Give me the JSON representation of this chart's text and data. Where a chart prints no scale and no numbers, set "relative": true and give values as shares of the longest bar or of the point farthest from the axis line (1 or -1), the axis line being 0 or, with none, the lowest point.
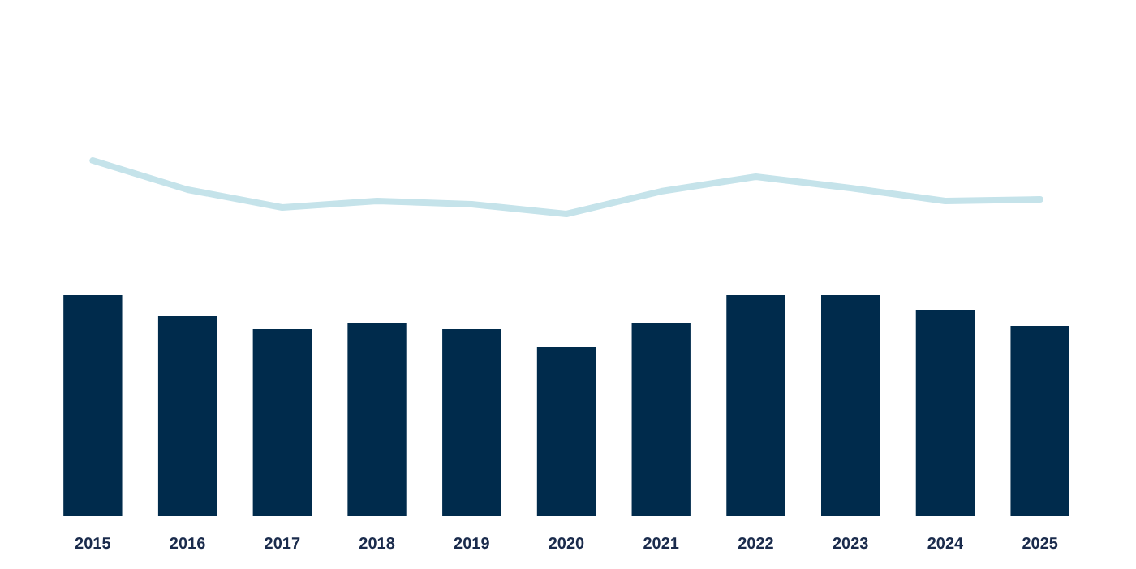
{
  "chart_data": [
    {
      "type": "line",
      "relative": true,
      "tick_labels": false,
      "categories": [
        "2015",
        "2016",
        "2017",
        "2018",
        "2019",
        "2020",
        "2021",
        "2022",
        "2023",
        "2024",
        "2025"
      ],
      "series": [
        {
          "color": "#c5e3ea",
          "values": [
            1,
            0.455,
            0.121,
            0.242,
            0.182,
            0,
            0.424,
            0.697,
            0.485,
            0.242,
            0.273
          ]
        }
      ]
    },
    {
      "type": "bar",
      "relative": true,
      "categories": [
        "2015",
        "2016",
        "2017",
        "2018",
        "2019",
        "2020",
        "2021",
        "2022",
        "2023",
        "2024",
        "2025"
      ],
      "series": [
        {
          "color": "#002b4c",
          "values": [
            1,
            0.904,
            0.846,
            0.875,
            0.846,
            0.765,
            0.875,
            1,
            1,
            0.934,
            0.86
          ]
        }
      ]
    }
  ]
}
